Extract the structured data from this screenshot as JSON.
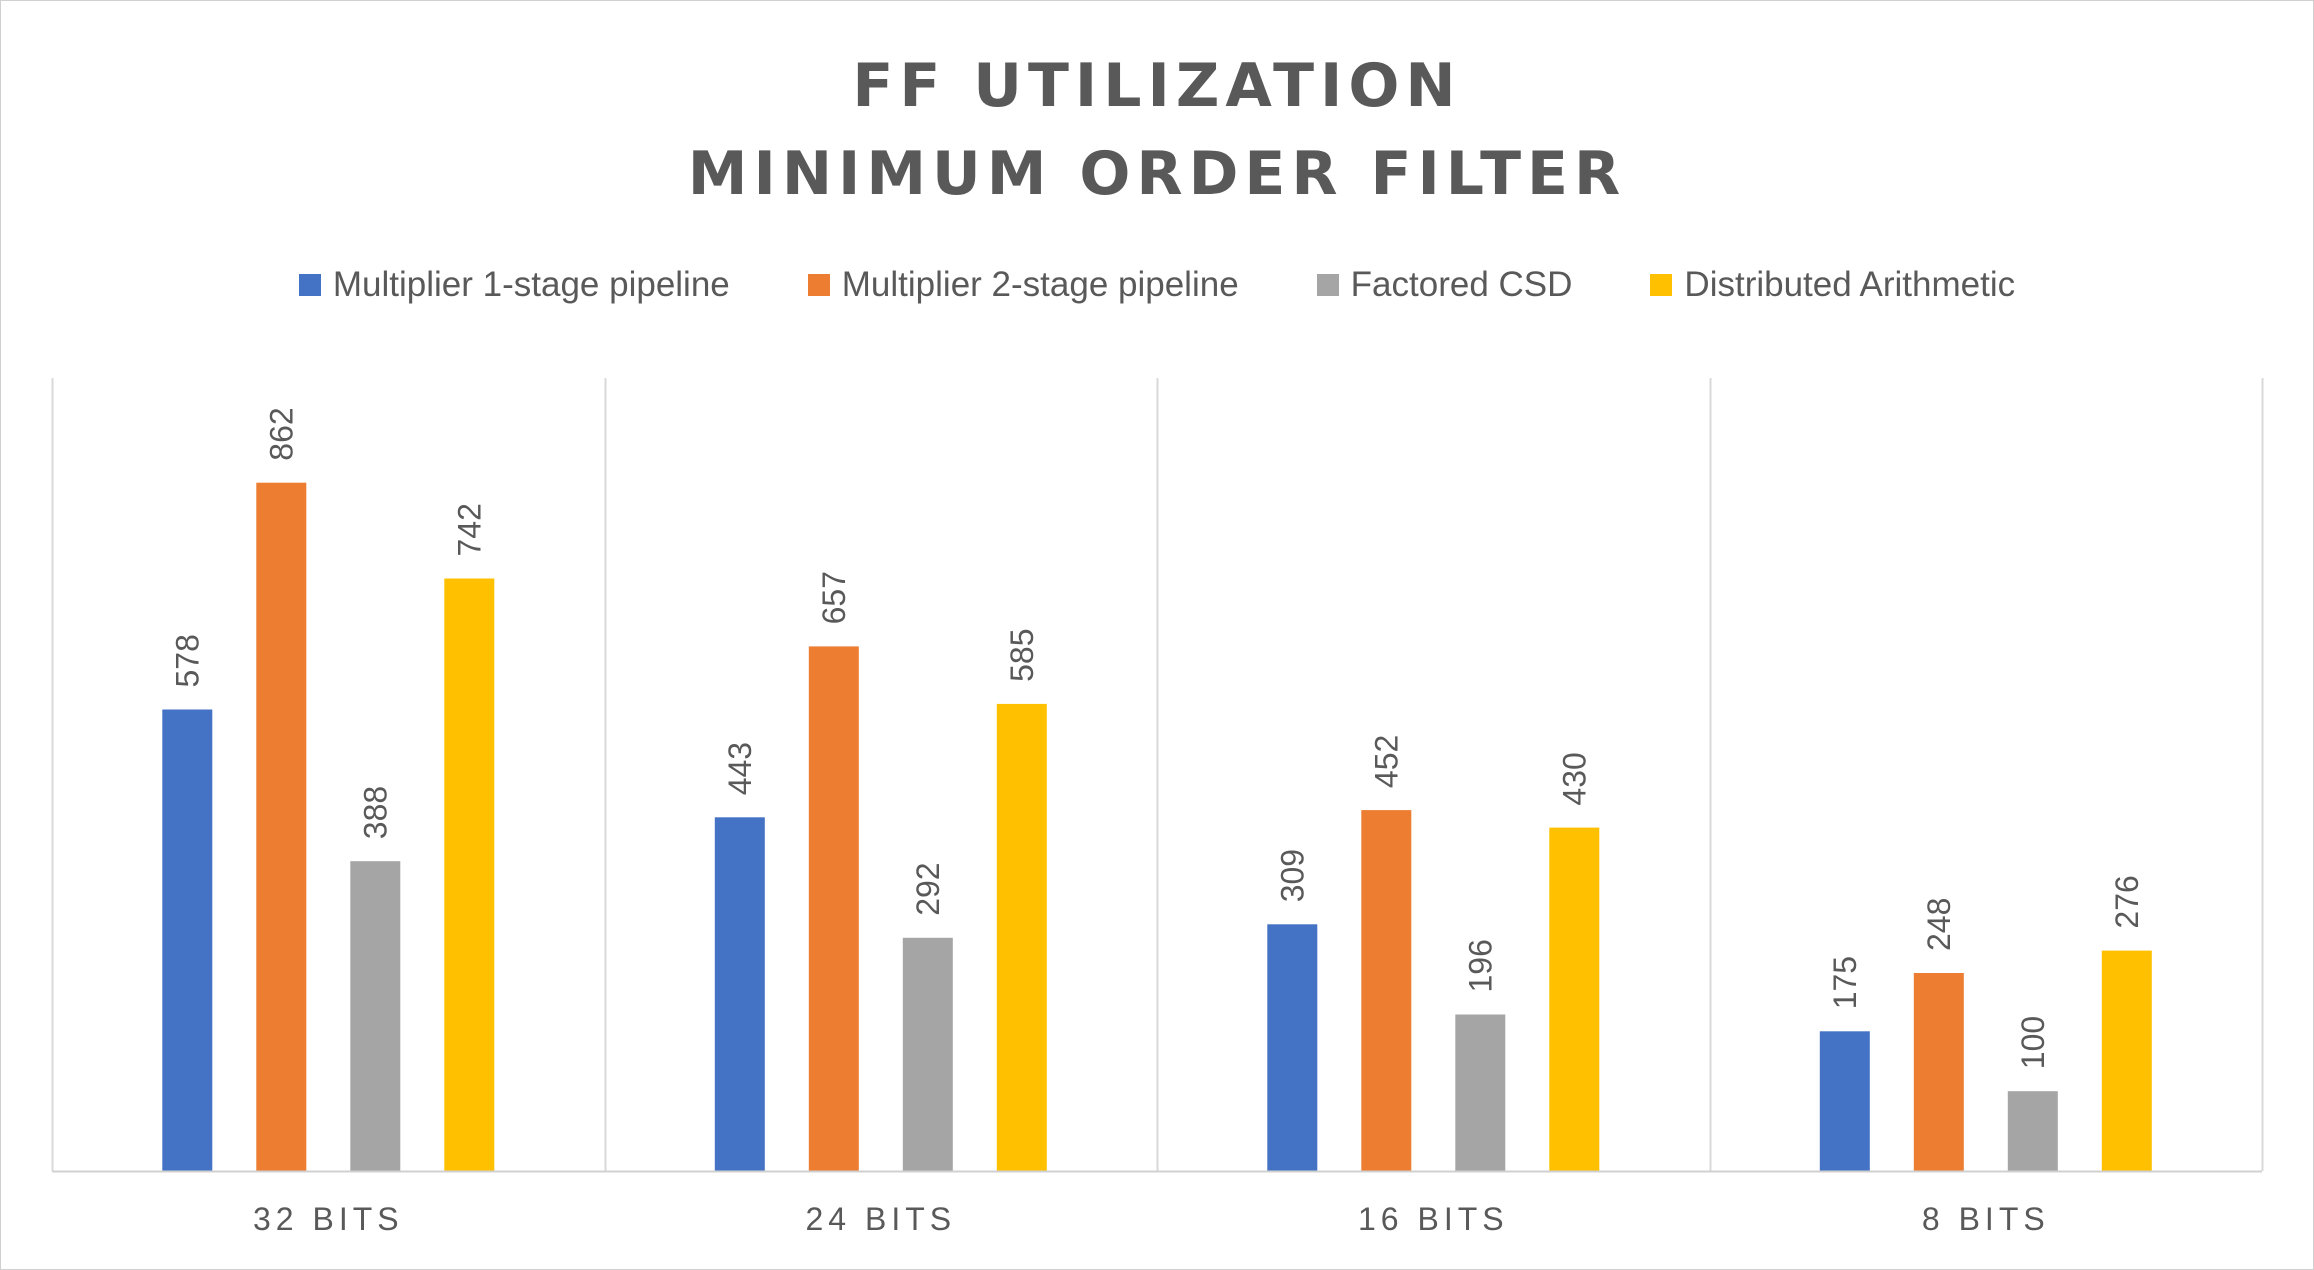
{
  "chart_data": {
    "type": "bar",
    "title_lines": [
      "FF UTILIZATION",
      "MINIMUM ORDER FILTER"
    ],
    "categories": [
      "32 BITS",
      "24 BITS",
      "16 BITS",
      "8 BITS"
    ],
    "series": [
      {
        "name": "Multiplier 1-stage pipeline",
        "color": "#4472C4",
        "values": [
          578,
          443,
          309,
          175
        ]
      },
      {
        "name": "Multiplier 2-stage pipeline",
        "color": "#ED7D31",
        "values": [
          862,
          657,
          452,
          248
        ]
      },
      {
        "name": "Factored CSD",
        "color": "#A5A5A5",
        "values": [
          388,
          292,
          196,
          100
        ]
      },
      {
        "name": "Distributed Arithmetic",
        "color": "#FFC000",
        "values": [
          742,
          585,
          430,
          276
        ]
      }
    ],
    "xlabel": "",
    "ylabel": "",
    "ylim": [
      0,
      1000
    ],
    "legend_position": "top",
    "data_labels": true,
    "gridlines": "vertical category separators"
  }
}
